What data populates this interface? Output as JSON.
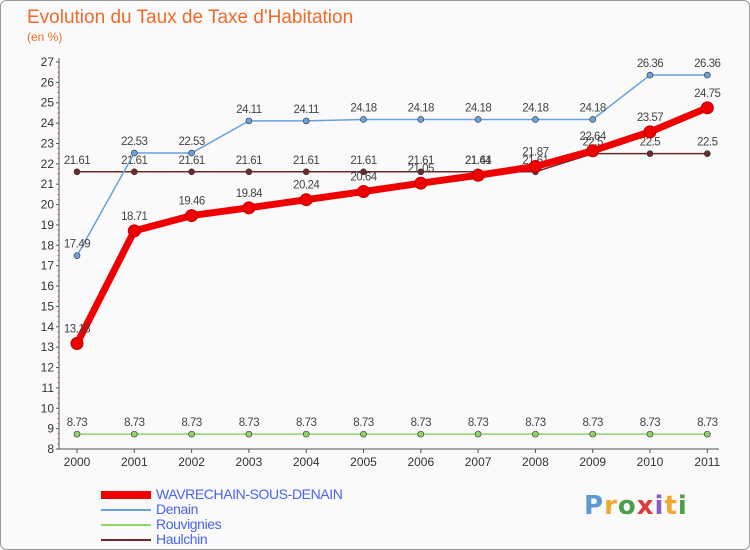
{
  "title": "Evolution du Taux de Taxe d'Habitation",
  "unit": "(en %)",
  "logo": {
    "text": [
      "P",
      "r",
      "o",
      "x",
      "i",
      "t",
      "i"
    ],
    "colors": [
      "#5b9bd5",
      "#f0a830",
      "#4aa04a",
      "#e03a3a",
      "#8a5cc8",
      "#f0a830",
      "#4aa04a"
    ]
  },
  "chart_data": {
    "type": "line",
    "x": [
      "2000",
      "2001",
      "2002",
      "2003",
      "2004",
      "2005",
      "2006",
      "2007",
      "2008",
      "2009",
      "2010",
      "2011"
    ],
    "ylim": [
      8,
      27
    ],
    "yticks": [
      8,
      9,
      10,
      11,
      12,
      13,
      14,
      15,
      16,
      17,
      18,
      19,
      20,
      21,
      22,
      23,
      24,
      25,
      26,
      27
    ],
    "grid": false,
    "legend_position": "bottom-left",
    "series": [
      {
        "name": "Haulchin",
        "color": "#6b2a2a",
        "width": 1.5,
        "marker": 3,
        "values": [
          21.61,
          21.61,
          21.61,
          21.61,
          21.61,
          21.61,
          21.61,
          21.61,
          21.61,
          22.5,
          22.5,
          22.5
        ],
        "labels": [
          "21.61",
          "21.61",
          "21.61",
          "21.61",
          "21.61",
          "21.61",
          "21.61",
          "21.61",
          "21.61",
          "22.5",
          "22.5",
          "22.5"
        ]
      },
      {
        "name": "Rouvignies",
        "color": "#8fd36a",
        "width": 1.5,
        "marker": 3,
        "values": [
          8.73,
          8.73,
          8.73,
          8.73,
          8.73,
          8.73,
          8.73,
          8.73,
          8.73,
          8.73,
          8.73,
          8.73
        ],
        "labels": [
          "8.73",
          "8.73",
          "8.73",
          "8.73",
          "8.73",
          "8.73",
          "8.73",
          "8.73",
          "8.73",
          "8.73",
          "8.73",
          "8.73"
        ]
      },
      {
        "name": "Denain",
        "color": "#6aa0e0",
        "width": 1.5,
        "marker": 3,
        "values": [
          17.49,
          22.53,
          22.53,
          24.11,
          24.11,
          24.18,
          24.18,
          24.18,
          24.18,
          24.18,
          26.36,
          26.36
        ],
        "labels": [
          "17.49",
          "22.53",
          "22.53",
          "24.11",
          "24.11",
          "24.18",
          "24.18",
          "24.18",
          "24.18",
          "24.18",
          "26.36",
          "26.36"
        ]
      },
      {
        "name": "WAVRECHAIN-SOUS-DENAIN",
        "color": "#f00000",
        "width": 7,
        "marker": 6,
        "values": [
          13.18,
          18.71,
          19.46,
          19.84,
          20.24,
          20.64,
          21.05,
          21.44,
          21.87,
          22.64,
          23.57,
          24.75
        ],
        "labels": [
          "13.18",
          "18.71",
          "19.46",
          "19.84",
          "20.24",
          "20.64",
          "21.05",
          "21.44",
          "21.87",
          "22.64",
          "23.57",
          "24.75"
        ]
      }
    ],
    "legend_order": [
      "WAVRECHAIN-SOUS-DENAIN",
      "Denain",
      "Rouvignies",
      "Haulchin"
    ]
  }
}
